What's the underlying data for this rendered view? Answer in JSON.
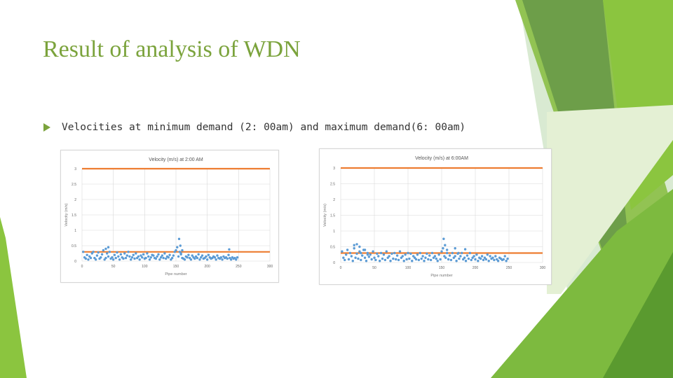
{
  "slide": {
    "title": "Result of analysis of WDN",
    "bullet_text": "Velocities at minimum demand (2: 00am) and maximum demand(6: 00am)"
  },
  "colors": {
    "title": "#7ba33c",
    "points": "#5b9bd5",
    "reference_line": "#ed7d31",
    "gridline": "#d9d9d9"
  },
  "chart_data": [
    {
      "type": "scatter",
      "title": "Velocity (m/s) at 2:00 AM",
      "xlabel": "Pipe number",
      "ylabel": "Velocity (m/s)",
      "xlim": [
        0,
        300
      ],
      "ylim": [
        0,
        3
      ],
      "xticks": [
        "0",
        "50",
        "100",
        "150",
        "200",
        "250",
        "300"
      ],
      "yticks": [
        "0",
        "0.5",
        "1",
        "1.5",
        "2",
        "2.5",
        "3"
      ],
      "reference_lines": [
        3,
        0.3
      ],
      "grid": true,
      "x": [
        2,
        4,
        6,
        8,
        10,
        12,
        14,
        16,
        18,
        20,
        22,
        24,
        26,
        28,
        30,
        32,
        34,
        36,
        38,
        40,
        42,
        44,
        46,
        48,
        50,
        52,
        54,
        56,
        58,
        60,
        62,
        64,
        66,
        68,
        70,
        72,
        74,
        76,
        78,
        80,
        82,
        84,
        86,
        88,
        90,
        92,
        94,
        96,
        98,
        100,
        102,
        104,
        106,
        108,
        110,
        112,
        114,
        116,
        118,
        120,
        122,
        124,
        126,
        128,
        130,
        132,
        134,
        136,
        138,
        140,
        142,
        144,
        146,
        148,
        150,
        152,
        154,
        156,
        158,
        160,
        162,
        164,
        166,
        168,
        170,
        172,
        174,
        176,
        178,
        180,
        182,
        184,
        186,
        188,
        190,
        192,
        194,
        196,
        198,
        200,
        202,
        204,
        206,
        208,
        210,
        212,
        214,
        216,
        218,
        220,
        222,
        224,
        226,
        228,
        230,
        232,
        234,
        236,
        238,
        240,
        242,
        244,
        246,
        248,
        38,
        42,
        155,
        157,
        160,
        158,
        235
      ],
      "y": [
        0.3,
        0.12,
        0.08,
        0.2,
        0.05,
        0.15,
        0.1,
        0.25,
        0.3,
        0.1,
        0.05,
        0.18,
        0.28,
        0.08,
        0.12,
        0.22,
        0.35,
        0.05,
        0.1,
        0.25,
        0.15,
        0.3,
        0.08,
        0.12,
        0.05,
        0.2,
        0.1,
        0.28,
        0.15,
        0.05,
        0.22,
        0.12,
        0.08,
        0.25,
        0.1,
        0.18,
        0.3,
        0.15,
        0.05,
        0.12,
        0.2,
        0.08,
        0.25,
        0.1,
        0.15,
        0.05,
        0.18,
        0.12,
        0.22,
        0.08,
        0.1,
        0.25,
        0.15,
        0.05,
        0.12,
        0.2,
        0.18,
        0.1,
        0.08,
        0.15,
        0.22,
        0.05,
        0.12,
        0.18,
        0.1,
        0.25,
        0.08,
        0.15,
        0.12,
        0.2,
        0.05,
        0.1,
        0.18,
        0.3,
        0.35,
        0.45,
        0.15,
        0.3,
        0.22,
        0.1,
        0.08,
        0.05,
        0.15,
        0.12,
        0.2,
        0.1,
        0.05,
        0.18,
        0.12,
        0.08,
        0.15,
        0.1,
        0.22,
        0.05,
        0.12,
        0.18,
        0.08,
        0.1,
        0.15,
        0.05,
        0.2,
        0.12,
        0.08,
        0.1,
        0.15,
        0.12,
        0.05,
        0.18,
        0.1,
        0.08,
        0.12,
        0.05,
        0.15,
        0.1,
        0.12,
        0.08,
        0.2,
        0.1,
        0.05,
        0.12,
        0.08,
        0.1,
        0.05,
        0.12,
        0.4,
        0.45,
        0.72,
        0.5,
        0.35,
        0.25,
        0.38
      ]
    },
    {
      "type": "scatter",
      "title": "Velocity (m/s) at 6:00AM",
      "xlabel": "Pipe number",
      "ylabel": "Velocity (m/s)",
      "xlim": [
        0,
        300
      ],
      "ylim": [
        0,
        3
      ],
      "xticks": [
        "0",
        "50",
        "100",
        "150",
        "200",
        "250",
        "300"
      ],
      "yticks": [
        "0",
        "0.5",
        "1",
        "1.5",
        "2",
        "2.5",
        "3"
      ],
      "reference_lines": [
        3,
        0.3
      ],
      "grid": true,
      "x": [
        2,
        4,
        6,
        8,
        10,
        12,
        14,
        16,
        18,
        20,
        22,
        24,
        26,
        28,
        30,
        32,
        34,
        36,
        38,
        40,
        42,
        44,
        46,
        48,
        50,
        52,
        54,
        56,
        58,
        60,
        62,
        64,
        66,
        68,
        70,
        72,
        74,
        76,
        78,
        80,
        82,
        84,
        86,
        88,
        90,
        92,
        94,
        96,
        98,
        100,
        102,
        104,
        106,
        108,
        110,
        112,
        114,
        116,
        118,
        120,
        122,
        124,
        126,
        128,
        130,
        132,
        134,
        136,
        138,
        140,
        142,
        144,
        146,
        148,
        150,
        152,
        154,
        156,
        158,
        160,
        162,
        164,
        166,
        168,
        170,
        172,
        174,
        176,
        178,
        180,
        182,
        184,
        186,
        188,
        190,
        192,
        194,
        196,
        198,
        200,
        202,
        204,
        206,
        208,
        210,
        212,
        214,
        216,
        218,
        220,
        222,
        224,
        226,
        228,
        230,
        232,
        234,
        236,
        238,
        240,
        242,
        244,
        246,
        248,
        20,
        24,
        28,
        30,
        36,
        40,
        153,
        155,
        158,
        170,
        175,
        185
      ],
      "y": [
        0.35,
        0.15,
        0.08,
        0.25,
        0.4,
        0.1,
        0.3,
        0.2,
        0.05,
        0.45,
        0.15,
        0.28,
        0.12,
        0.35,
        0.08,
        0.22,
        0.4,
        0.15,
        0.05,
        0.3,
        0.18,
        0.25,
        0.1,
        0.35,
        0.15,
        0.08,
        0.28,
        0.2,
        0.05,
        0.3,
        0.12,
        0.25,
        0.08,
        0.35,
        0.15,
        0.2,
        0.05,
        0.28,
        0.12,
        0.3,
        0.1,
        0.22,
        0.08,
        0.35,
        0.15,
        0.2,
        0.05,
        0.25,
        0.1,
        0.3,
        0.12,
        0.28,
        0.05,
        0.2,
        0.15,
        0.1,
        0.25,
        0.08,
        0.3,
        0.12,
        0.2,
        0.05,
        0.15,
        0.28,
        0.1,
        0.22,
        0.08,
        0.3,
        0.15,
        0.2,
        0.12,
        0.05,
        0.25,
        0.1,
        0.35,
        0.45,
        0.2,
        0.15,
        0.3,
        0.1,
        0.22,
        0.08,
        0.3,
        0.15,
        0.2,
        0.05,
        0.28,
        0.12,
        0.2,
        0.3,
        0.1,
        0.15,
        0.05,
        0.22,
        0.12,
        0.3,
        0.08,
        0.15,
        0.2,
        0.1,
        0.25,
        0.05,
        0.15,
        0.12,
        0.2,
        0.08,
        0.15,
        0.1,
        0.25,
        0.05,
        0.2,
        0.12,
        0.15,
        0.08,
        0.2,
        0.1,
        0.05,
        0.15,
        0.12,
        0.08,
        0.1,
        0.2,
        0.05,
        0.12,
        0.55,
        0.58,
        0.5,
        0.3,
        0.4,
        0.25,
        0.75,
        0.55,
        0.4,
        0.45,
        0.3,
        0.42
      ]
    }
  ]
}
